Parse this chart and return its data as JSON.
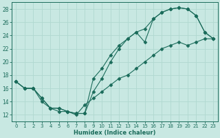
{
  "xlabel": "Humidex (Indice chaleur)",
  "xlim": [
    -0.5,
    23.5
  ],
  "ylim": [
    11,
    29
  ],
  "yticks": [
    12,
    14,
    16,
    18,
    20,
    22,
    24,
    26,
    28
  ],
  "xticks": [
    0,
    1,
    2,
    3,
    4,
    5,
    6,
    7,
    8,
    9,
    10,
    11,
    12,
    13,
    14,
    15,
    16,
    17,
    18,
    19,
    20,
    21,
    22,
    23
  ],
  "bg_color": "#c8e8e2",
  "line_color": "#1a6b5a",
  "grid_color": "#b0d8d0",
  "line1_x": [
    0,
    1,
    2,
    3,
    4,
    5,
    6,
    7,
    8,
    9,
    10,
    11,
    12,
    13,
    14,
    15,
    16,
    17,
    18,
    19,
    20,
    21,
    22,
    23
  ],
  "line1_y": [
    17.0,
    16.0,
    16.0,
    14.5,
    13.0,
    13.0,
    12.5,
    12.2,
    12.2,
    17.5,
    19.0,
    21.0,
    22.5,
    23.5,
    24.5,
    25.0,
    26.5,
    27.5,
    28.0,
    28.2,
    28.0,
    27.0,
    24.5,
    23.5
  ],
  "line2_x": [
    0,
    1,
    2,
    3,
    4,
    5,
    6,
    7,
    8,
    9,
    10,
    11,
    12,
    13,
    14,
    15,
    16,
    17,
    18,
    19,
    20,
    21,
    22,
    23
  ],
  "line2_y": [
    17.0,
    16.0,
    16.0,
    14.5,
    13.0,
    13.0,
    12.5,
    12.2,
    12.2,
    15.5,
    17.5,
    20.0,
    22.0,
    23.5,
    24.5,
    23.0,
    26.5,
    27.5,
    28.0,
    28.2,
    28.0,
    27.0,
    24.5,
    23.5
  ],
  "line3_x": [
    0,
    1,
    2,
    3,
    4,
    5,
    6,
    7,
    8,
    9,
    10,
    11,
    12,
    13,
    14,
    15,
    16,
    17,
    18,
    19,
    20,
    21,
    22,
    23
  ],
  "line3_y": [
    17.0,
    16.0,
    16.0,
    14.0,
    13.0,
    12.5,
    12.5,
    12.0,
    13.5,
    14.5,
    15.5,
    16.5,
    17.5,
    18.0,
    19.0,
    20.0,
    21.0,
    22.0,
    22.5,
    23.0,
    22.5,
    23.0,
    23.5,
    23.5
  ]
}
